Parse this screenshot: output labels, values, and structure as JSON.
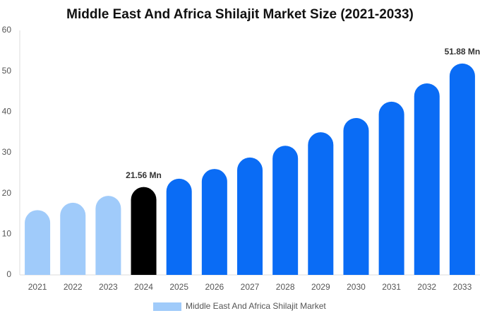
{
  "chart_data": {
    "type": "bar",
    "title": "Middle East And Africa Shilajit Market Size (2021-2033)",
    "categories": [
      "2021",
      "2022",
      "2023",
      "2024",
      "2025",
      "2026",
      "2027",
      "2028",
      "2029",
      "2030",
      "2031",
      "2032",
      "2033"
    ],
    "series": [
      {
        "name": "Middle East And Africa Shilajit Market",
        "color": "#a0cbfa",
        "values": [
          15.9,
          17.7,
          19.4,
          21.56,
          23.6,
          26,
          28.8,
          31.7,
          35,
          38.5,
          42.5,
          47,
          51.88
        ],
        "value_labels": [
          null,
          null,
          null,
          "21.56 Mn",
          null,
          null,
          null,
          null,
          null,
          null,
          null,
          null,
          "51.88 Mn"
        ],
        "bar_colors": [
          "#a0cbfa",
          "#a0cbfa",
          "#a0cbfa",
          "#000000",
          "#0a6cf5",
          "#0a6cf5",
          "#0a6cf5",
          "#0a6cf5",
          "#0a6cf5",
          "#0a6cf5",
          "#0a6cf5",
          "#0a6cf5",
          "#0a6cf5"
        ]
      }
    ],
    "ylim": [
      0,
      60
    ],
    "yticks": [
      0,
      10,
      20,
      30,
      40,
      50,
      60
    ],
    "grid": false
  }
}
